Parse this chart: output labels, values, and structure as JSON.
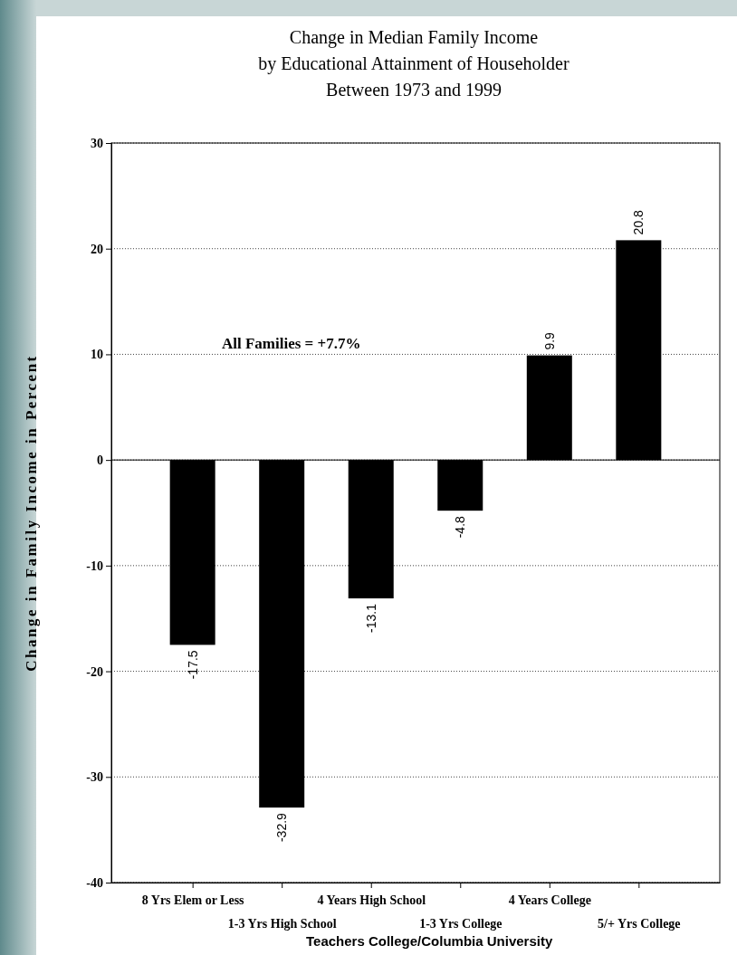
{
  "chart_data": {
    "type": "bar",
    "title": "Change in Median Family Income\nby Educational Attainment of Householder\nBetween 1973 and 1999",
    "ylabel": "Change in Family Income in Percent",
    "categories": [
      "8 Yrs Elem or Less",
      "1-3 Yrs High School",
      "4 Years High School",
      "1-3 Yrs College",
      "4 Years College",
      "5/+ Yrs College"
    ],
    "values": [
      -17.5,
      -32.9,
      -13.1,
      -4.8,
      9.9,
      20.8
    ],
    "color": "#000000",
    "ylim": [
      -40,
      30
    ],
    "yticks": [
      -40,
      -30,
      -20,
      -10,
      0,
      10,
      20,
      30
    ],
    "grid": "y",
    "data_labels": true,
    "annotations": [
      "All Families = +7.7%",
      "Teachers College/Columbia University"
    ]
  }
}
